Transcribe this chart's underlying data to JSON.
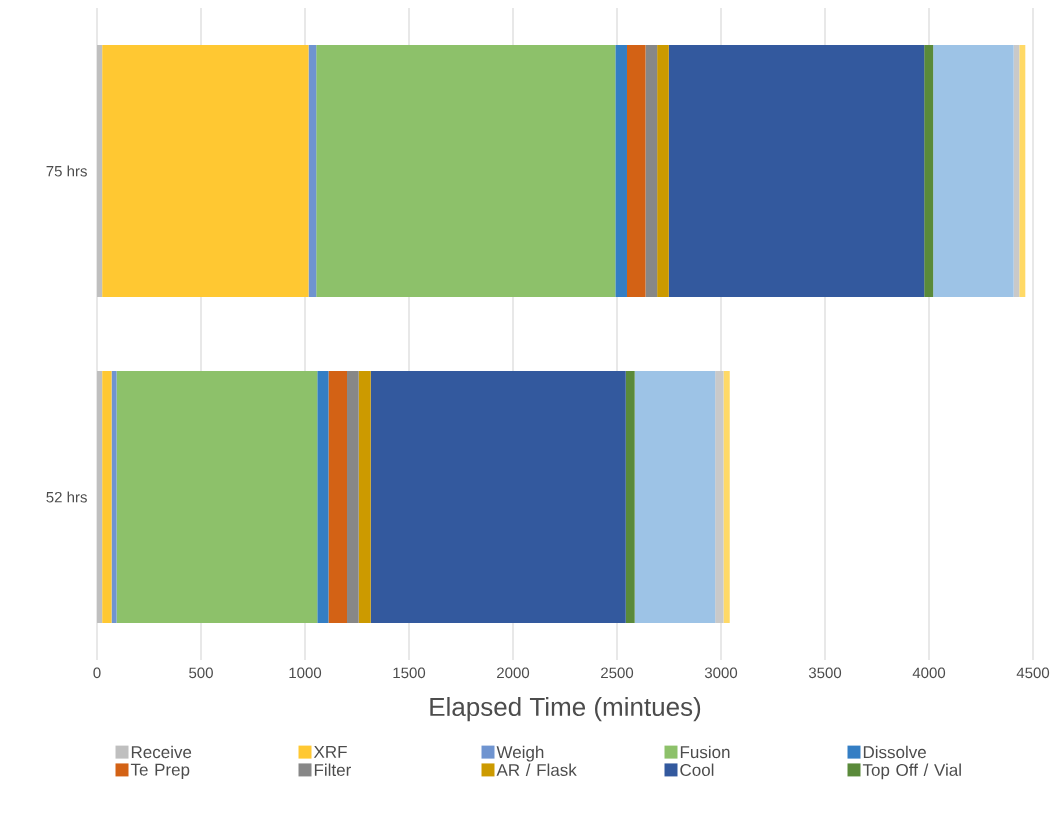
{
  "chart_data": {
    "type": "bar",
    "orientation": "horizontal",
    "stacked": true,
    "xlabel": "Elapsed Time (mintues)",
    "categories": [
      "75 hrs",
      "52 hrs"
    ],
    "xlim": [
      0,
      4500
    ],
    "xticks": [
      0,
      500,
      1000,
      1500,
      2000,
      2500,
      3000,
      3500,
      4000,
      4500
    ],
    "grid": "x",
    "legend": "bottom",
    "series": [
      {
        "name": "Receive",
        "color": "#bfbfbf",
        "values": [
          25,
          25
        ]
      },
      {
        "name": "XRF",
        "color": "#ffc832",
        "values": [
          992,
          45
        ]
      },
      {
        "name": "Weigh",
        "color": "#6f94d0",
        "values": [
          37,
          24
        ]
      },
      {
        "name": "Fusion",
        "color": "#8dc16a",
        "values": [
          1438,
          965
        ]
      },
      {
        "name": "Dissolve",
        "color": "#347ec4",
        "values": [
          56,
          54
        ]
      },
      {
        "name": "Te Prep",
        "color": "#d36215",
        "values": [
          89,
          89
        ]
      },
      {
        "name": "Filter",
        "color": "#878787",
        "values": [
          56,
          56
        ]
      },
      {
        "name": "AR / Flask",
        "color": "#cc9a00",
        "values": [
          56,
          58
        ]
      },
      {
        "name": "Cool",
        "color": "#33599e",
        "values": [
          1228,
          1226
        ]
      },
      {
        "name": "Top Off / Vial",
        "color": "#5a8a3a",
        "values": [
          43,
          43
        ]
      },
      {
        "color": "#9dc3e6",
        "values": [
          387,
          387
        ]
      },
      {
        "color": "#c9c9c9",
        "values": [
          27,
          40
        ]
      },
      {
        "color": "#ffd966",
        "values": [
          29,
          30
        ]
      }
    ]
  }
}
